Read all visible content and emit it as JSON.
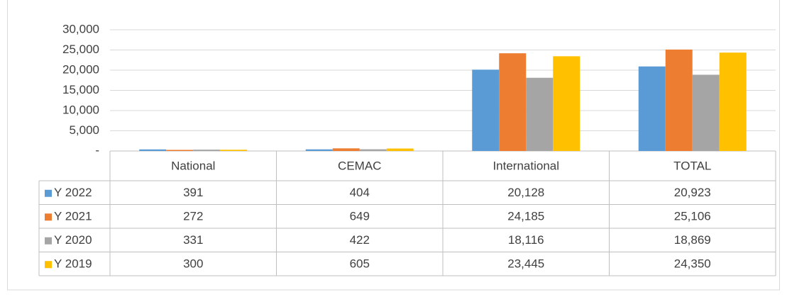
{
  "chart_data": {
    "type": "bar",
    "categories": [
      "National",
      "CEMAC",
      "International",
      "TOTAL"
    ],
    "series": [
      {
        "name": "Y 2022",
        "color": "#5b9bd5",
        "values": [
          391,
          404,
          20128,
          20923
        ],
        "value_labels": [
          "391",
          "404",
          "20,128",
          "20,923"
        ]
      },
      {
        "name": "Y 2021",
        "color": "#ed7d31",
        "values": [
          272,
          649,
          24185,
          25106
        ],
        "value_labels": [
          "272",
          "649",
          "24,185",
          "25,106"
        ]
      },
      {
        "name": "Y 2020",
        "color": "#a5a5a5",
        "values": [
          331,
          422,
          18116,
          18869
        ],
        "value_labels": [
          "331",
          "422",
          "18,116",
          "18,869"
        ]
      },
      {
        "name": "Y 2019",
        "color": "#ffc000",
        "values": [
          300,
          605,
          23445,
          24350
        ],
        "value_labels": [
          "300",
          "605",
          "23,445",
          "24,350"
        ]
      }
    ],
    "ylim": [
      0,
      30000
    ],
    "yticks": [
      {
        "value": 0,
        "label": "-"
      },
      {
        "value": 5000,
        "label": "5,000"
      },
      {
        "value": 10000,
        "label": "10,000"
      },
      {
        "value": 15000,
        "label": "15,000"
      },
      {
        "value": 20000,
        "label": "20,000"
      },
      {
        "value": 25000,
        "label": "25,000"
      },
      {
        "value": 30000,
        "label": "30,000"
      }
    ],
    "grid": true
  }
}
